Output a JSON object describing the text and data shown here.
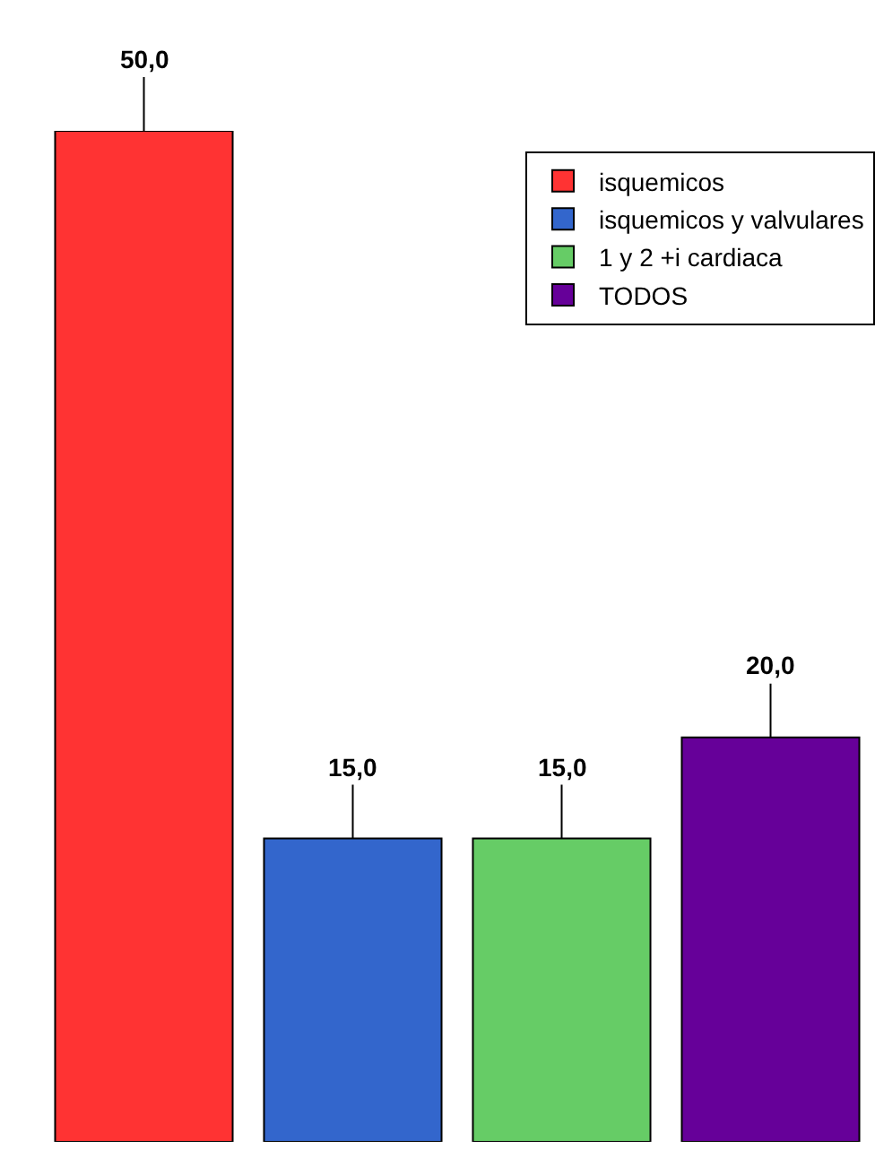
{
  "chart_data": {
    "type": "bar",
    "categories": [
      null
    ],
    "legend": "top right",
    "series": [
      {
        "name": "isquemicos",
        "color": "#ff3333",
        "values": [
          50
        ],
        "value_labels": [
          "50,0"
        ]
      },
      {
        "name": "isquemicos y valvulares",
        "color": "#3366cc",
        "values": [
          15
        ],
        "value_labels": [
          "15,0"
        ]
      },
      {
        "name": "1 y 2 +i cardiaca",
        "color": "#66cc66",
        "values": [
          15
        ],
        "value_labels": [
          "15,0"
        ]
      },
      {
        "name": "TODOS",
        "color": "#660099",
        "values": [
          20
        ],
        "value_labels": [
          "20,0"
        ]
      }
    ]
  }
}
